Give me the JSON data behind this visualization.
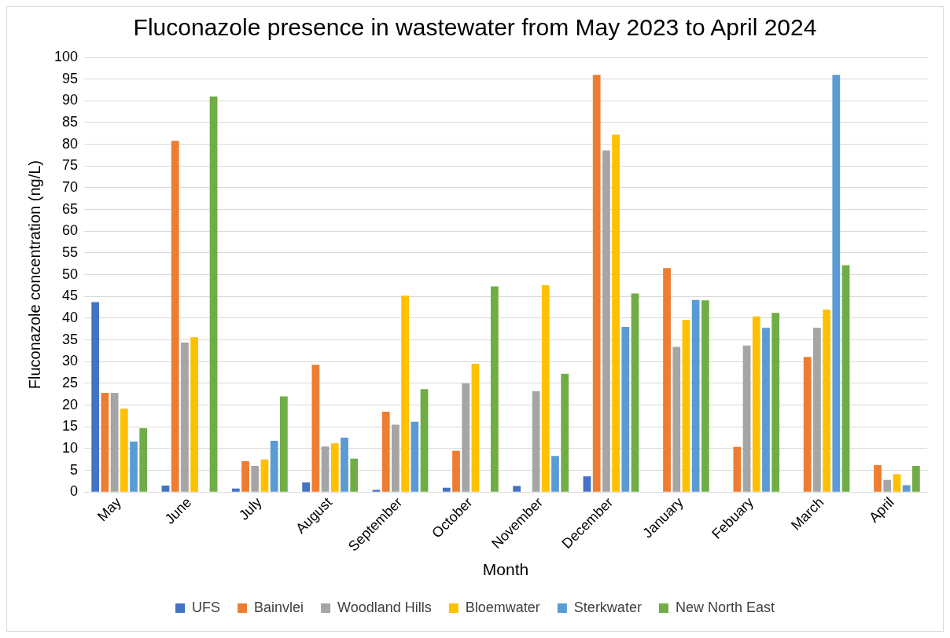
{
  "chart_data": {
    "type": "bar",
    "title": "Fluconazole presence in wastewater from May 2023 to April 2024",
    "xlabel": "Month",
    "ylabel": "Fluconazole concentration (ng/L)",
    "categories": [
      "May",
      "June",
      "July",
      "August",
      "September",
      "October",
      "November",
      "December",
      "January",
      "Febuary",
      "March",
      "April"
    ],
    "series": [
      {
        "name": "UFS",
        "color": "#4472c4",
        "values": [
          43.7,
          1.5,
          0.8,
          2.2,
          0.5,
          1,
          1.4,
          3.6,
          0,
          0,
          0,
          0
        ]
      },
      {
        "name": "Bainvlei",
        "color": "#ed7d31",
        "values": [
          22.8,
          80.8,
          7.1,
          29.3,
          18.5,
          9.5,
          0,
          96,
          51.5,
          10.4,
          31.1,
          6.2
        ]
      },
      {
        "name": "Woodland Hills",
        "color": "#a5a5a5",
        "values": [
          22.8,
          34.4,
          6,
          10.5,
          15.5,
          25,
          23.2,
          78.6,
          33.4,
          33.7,
          37.8,
          2.8
        ]
      },
      {
        "name": "Bloemwater",
        "color": "#ffc000",
        "values": [
          19.2,
          35.6,
          7.5,
          11.2,
          45.2,
          29.5,
          47.6,
          82.2,
          39.6,
          40.4,
          42,
          4.1
        ]
      },
      {
        "name": "Sterkwater",
        "color": "#5b9bd5",
        "values": [
          11.6,
          0,
          11.8,
          12.5,
          16.2,
          0,
          8.3,
          38,
          44.2,
          37.8,
          96,
          1.6
        ]
      },
      {
        "name": "New North East",
        "color": "#70ad47",
        "values": [
          14.7,
          91,
          22,
          7.7,
          23.7,
          47.3,
          27.2,
          45.7,
          44.1,
          41.2,
          52.2,
          6
        ]
      }
    ],
    "ylim": [
      0,
      100
    ],
    "yticks": [
      0,
      5,
      10,
      15,
      20,
      25,
      30,
      35,
      40,
      45,
      50,
      55,
      60,
      65,
      70,
      75,
      80,
      85,
      90,
      95,
      100
    ],
    "grid": "y",
    "legend": "bottom"
  }
}
